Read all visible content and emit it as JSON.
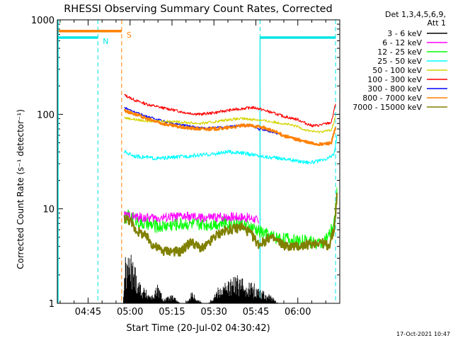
{
  "chart_data": {
    "type": "line",
    "title": "RHESSI Observing Summary Count Rates, Corrected",
    "xlabel": "Start Time (20-Jul-02 04:30:42)",
    "ylabel": "Corrected Count Rate (s⁻¹ detector⁻¹)",
    "yscale": "log",
    "ylim": [
      1,
      1000
    ],
    "xlim": [
      34,
      135
    ],
    "x_unit": "minutes after 04:00 UT",
    "x_ticks": [
      {
        "value": 45,
        "label": "04:45"
      },
      {
        "value": 60,
        "label": "05:00"
      },
      {
        "value": 75,
        "label": "05:15"
      },
      {
        "value": 90,
        "label": "05:30"
      },
      {
        "value": 105,
        "label": "05:45"
      },
      {
        "value": 120,
        "label": "06:00"
      }
    ],
    "y_ticks": [
      {
        "value": 1,
        "label": "1"
      },
      {
        "value": 10,
        "label": "10"
      },
      {
        "value": 100,
        "label": "100"
      },
      {
        "value": 1000,
        "label": "1000"
      }
    ],
    "legend": {
      "placement": "top-right",
      "header": [
        "Det 1,3,4,5,6,9,",
        "Att 1"
      ],
      "entries": [
        {
          "name": "3 - 6 keV",
          "color": "#000000"
        },
        {
          "name": "6 - 12 keV",
          "color": "#ff00ff"
        },
        {
          "name": "12 - 25 keV",
          "color": "#00ff00"
        },
        {
          "name": "25 - 50 keV",
          "color": "#00ffff"
        },
        {
          "name": "50 - 100 keV",
          "color": "#d4d400"
        },
        {
          "name": "100 - 300 keV",
          "color": "#ff0000"
        },
        {
          "name": "300 - 800 keV",
          "color": "#0000ff"
        },
        {
          "name": "800 - 7000 keV",
          "color": "#ff8000"
        },
        {
          "name": "7000 - 15000 keV",
          "color": "#808000"
        }
      ]
    },
    "flags": [
      {
        "label": "N",
        "name": "Night",
        "color": "#00e5e5",
        "level": 650,
        "ranges": [
          [
            34,
            48.5
          ],
          [
            106.5,
            133.5
          ]
        ],
        "boundaries": [
          48.5,
          106.5,
          133.5
        ]
      },
      {
        "label": "S",
        "name": "SAA",
        "color": "#ff8000",
        "level": 760,
        "ranges": [
          [
            34,
            57
          ]
        ],
        "boundaries": [
          57
        ]
      }
    ],
    "series": [
      {
        "name": "100 - 300 keV",
        "color": "#ff0000",
        "x": [
          58,
          62,
          66,
          70,
          75,
          80,
          85,
          90,
          95,
          100,
          104,
          106,
          110,
          115,
          120,
          123,
          125,
          127,
          132,
          133.5
        ],
        "y": [
          160,
          140,
          128,
          120,
          112,
          104,
          100,
          104,
          110,
          115,
          118,
          115,
          106,
          95,
          88,
          80,
          76,
          76,
          82,
          130
        ]
      },
      {
        "name": "300 - 800 keV",
        "color": "#0000ff",
        "x": [
          58,
          62,
          66,
          70,
          75,
          80,
          85,
          90,
          95,
          100,
          104,
          106,
          110,
          113
        ],
        "y": [
          118,
          105,
          95,
          88,
          80,
          76,
          72,
          72,
          74,
          77,
          75,
          70,
          66,
          63
        ]
      },
      {
        "name": "50 - 100 keV",
        "color": "#d4d400",
        "x": [
          58,
          62,
          66,
          70,
          75,
          80,
          85,
          90,
          95,
          100,
          105,
          110,
          115,
          120,
          123,
          127,
          132,
          133.5
        ],
        "y": [
          92,
          88,
          85,
          85,
          84,
          82,
          80,
          83,
          88,
          90,
          88,
          84,
          80,
          74,
          68,
          65,
          68,
          95
        ]
      },
      {
        "name": "800 - 7000 keV",
        "color": "#ff8000",
        "x": [
          58,
          62,
          66,
          70,
          75,
          80,
          85,
          90,
          95,
          100,
          104,
          108,
          112,
          116,
          120,
          124,
          128,
          132,
          133.5
        ],
        "y": [
          110,
          100,
          90,
          82,
          76,
          72,
          70,
          70,
          72,
          76,
          76,
          72,
          65,
          58,
          54,
          50,
          48,
          50,
          72
        ]
      },
      {
        "name": "25 - 50 keV",
        "color": "#00ffff",
        "x": [
          58,
          62,
          66,
          70,
          75,
          80,
          85,
          90,
          95,
          100,
          105,
          110,
          115,
          120,
          125,
          130,
          133,
          134
        ],
        "y": [
          40,
          36,
          35,
          34,
          35,
          36,
          37,
          38,
          40,
          39,
          37,
          35,
          34,
          32,
          31,
          33,
          38,
          60
        ]
      },
      {
        "name": "12 - 25 keV",
        "color": "#00ff00",
        "x": [
          58,
          60,
          64,
          70,
          75,
          80,
          85,
          90,
          95,
          100,
          105,
          108,
          112,
          116,
          120,
          124,
          128,
          131,
          133,
          134
        ],
        "y": [
          8,
          8.5,
          7,
          6.5,
          6.8,
          7,
          6.8,
          7,
          7.2,
          7,
          6,
          5.5,
          5,
          4.8,
          4.5,
          4.5,
          4.3,
          5,
          7,
          15
        ]
      },
      {
        "name": "6 - 12 keV",
        "color": "#ff00ff",
        "x": [
          58,
          62,
          66,
          70,
          75,
          80,
          85,
          90,
          95,
          100,
          105,
          106
        ],
        "y": [
          8.5,
          8.2,
          8,
          8,
          8.2,
          8.3,
          8,
          8.1,
          8.3,
          8.2,
          7.8,
          7
        ]
      },
      {
        "name": "7000 - 15000 keV",
        "color": "#808000",
        "x": [
          58,
          60,
          62,
          64,
          66,
          68,
          70,
          72,
          75,
          78,
          80,
          82,
          84,
          86,
          88,
          90,
          92,
          95,
          98,
          100,
          103,
          106,
          108,
          110,
          113,
          116,
          120,
          124,
          128,
          131,
          133,
          134
        ],
        "y": [
          8,
          7.5,
          6,
          5.5,
          5,
          4.2,
          3.8,
          3.6,
          3.6,
          3.5,
          4,
          4.5,
          4,
          3.8,
          4.2,
          5,
          5.5,
          6,
          6.2,
          6.5,
          5.5,
          4.2,
          4.5,
          5,
          4.5,
          4,
          4,
          4.2,
          4.5,
          4,
          6,
          14
        ]
      },
      {
        "name": "3 - 6 keV",
        "color": "#000000",
        "x": [
          57.5,
          58,
          60,
          62,
          64,
          66,
          68,
          70,
          72,
          75,
          78,
          80,
          82,
          84,
          86,
          88,
          90,
          92,
          95,
          98,
          100,
          103,
          106,
          110,
          113,
          115,
          118,
          122,
          126,
          130,
          133
        ],
        "y": [
          1,
          2.5,
          3,
          2.2,
          1.5,
          1.3,
          1.2,
          1.5,
          1.1,
          1.2,
          1,
          1,
          1.3,
          1.1,
          1,
          1,
          1.2,
          1.5,
          1.6,
          1.8,
          1.7,
          1.6,
          1.4,
          1.2,
          1,
          1,
          1,
          1,
          1,
          1,
          1
        ]
      }
    ]
  },
  "footer": {
    "date_stamp": "17-Oct-2021 10:47"
  }
}
